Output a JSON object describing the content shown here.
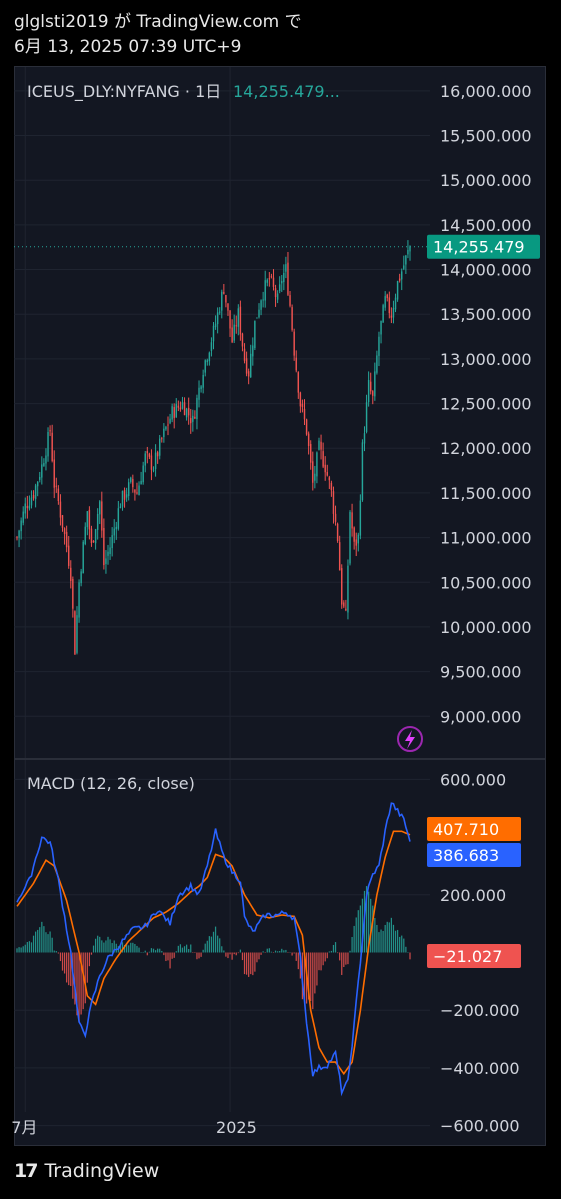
{
  "header": {
    "line1": "glglsti2019 が TradingView.com で",
    "line2": "6月 13, 2025 07:39 UTC+9"
  },
  "legend": {
    "symbol": "ICEUS_DLY:NYFANG · 1日",
    "value": "14,255.479..."
  },
  "macd_legend": "MACD (12, 26, close)",
  "footer": {
    "brand": "TradingView",
    "logo": "17"
  },
  "colors": {
    "up": "#26a69a",
    "down": "#ef5350",
    "macd": "#2962ff",
    "signal": "#ff6d00",
    "hist_up": "#26a69a",
    "hist_down": "#ef5350",
    "bg": "#131722",
    "grid": "#1f2430"
  },
  "chart_data": [
    {
      "type": "candlestick",
      "title": "ICEUS_DLY:NYFANG · 1日",
      "y_ticks": [
        "16,000.000",
        "15,500.000",
        "15,000.000",
        "14,500.000",
        "14,000.000",
        "13,500.000",
        "13,000.000",
        "12,500.000",
        "12,000.000",
        "11,500.000",
        "11,000.000",
        "10,500.000",
        "10,000.000",
        "9,500.000",
        "9,000.000"
      ],
      "ylim": [
        8600,
        16200
      ],
      "x_ticks": [
        "7月",
        "2025"
      ],
      "last_price": 14255.479,
      "last_price_label": "14,255.479",
      "anchors_close": [
        [
          0,
          11000
        ],
        [
          4,
          11350
        ],
        [
          8,
          11500
        ],
        [
          12,
          11800
        ],
        [
          16,
          12200
        ],
        [
          18,
          11600
        ],
        [
          20,
          11400
        ],
        [
          24,
          10900
        ],
        [
          26,
          10600
        ],
        [
          28,
          9750
        ],
        [
          30,
          10500
        ],
        [
          34,
          11300
        ],
        [
          36,
          10900
        ],
        [
          40,
          11400
        ],
        [
          42,
          10700
        ],
        [
          45,
          10900
        ],
        [
          50,
          11400
        ],
        [
          55,
          11600
        ],
        [
          58,
          11500
        ],
        [
          62,
          11900
        ],
        [
          66,
          11800
        ],
        [
          70,
          12100
        ],
        [
          75,
          12400
        ],
        [
          80,
          12500
        ],
        [
          85,
          12300
        ],
        [
          90,
          12900
        ],
        [
          95,
          13300
        ],
        [
          100,
          13800
        ],
        [
          104,
          13200
        ],
        [
          107,
          13500
        ],
        [
          110,
          13000
        ],
        [
          112,
          12850
        ],
        [
          115,
          13400
        ],
        [
          118,
          13700
        ],
        [
          122,
          13900
        ],
        [
          126,
          13650
        ],
        [
          128,
          13900
        ],
        [
          130,
          14000
        ],
        [
          132,
          13600
        ],
        [
          134,
          13100
        ],
        [
          137,
          12500
        ],
        [
          140,
          12200
        ],
        [
          143,
          11600
        ],
        [
          146,
          12000
        ],
        [
          149,
          11800
        ],
        [
          152,
          11500
        ],
        [
          155,
          11000
        ],
        [
          157,
          10300
        ],
        [
          159,
          10100
        ],
        [
          161,
          11300
        ],
        [
          163,
          10900
        ],
        [
          165,
          11000
        ],
        [
          167,
          12000
        ],
        [
          170,
          12700
        ],
        [
          172,
          12550
        ],
        [
          175,
          13250
        ],
        [
          178,
          13650
        ],
        [
          181,
          13500
        ],
        [
          184,
          13850
        ],
        [
          187,
          14050
        ],
        [
          190,
          14256
        ]
      ],
      "n_candles": 191
    },
    {
      "type": "macd",
      "title": "MACD (12, 26, close)",
      "y_ticks": [
        "600.000",
        "200.000",
        "−200.000",
        "−400.000",
        "−600.000"
      ],
      "ylim": [
        -650,
        650
      ],
      "macd_label": "386.683",
      "signal_label": "407.710",
      "hist_label": "−21.027",
      "macd_value": 386.683,
      "signal_value": 407.71,
      "hist_value": -21.027,
      "macd_anchors": [
        [
          0,
          180
        ],
        [
          6,
          250
        ],
        [
          12,
          400
        ],
        [
          16,
          380
        ],
        [
          20,
          250
        ],
        [
          26,
          0
        ],
        [
          30,
          -250
        ],
        [
          33,
          -280
        ],
        [
          36,
          -180
        ],
        [
          40,
          -80
        ],
        [
          44,
          -20
        ],
        [
          50,
          30
        ],
        [
          56,
          80
        ],
        [
          62,
          90
        ],
        [
          68,
          150
        ],
        [
          74,
          100
        ],
        [
          78,
          200
        ],
        [
          84,
          230
        ],
        [
          88,
          200
        ],
        [
          92,
          300
        ],
        [
          96,
          420
        ],
        [
          100,
          330
        ],
        [
          104,
          280
        ],
        [
          108,
          250
        ],
        [
          110,
          120
        ],
        [
          114,
          70
        ],
        [
          120,
          130
        ],
        [
          126,
          130
        ],
        [
          130,
          140
        ],
        [
          134,
          120
        ],
        [
          137,
          -20
        ],
        [
          140,
          -240
        ],
        [
          143,
          -420
        ],
        [
          146,
          -400
        ],
        [
          150,
          -390
        ],
        [
          154,
          -350
        ],
        [
          157,
          -480
        ],
        [
          160,
          -450
        ],
        [
          163,
          -250
        ],
        [
          166,
          -30
        ],
        [
          169,
          200
        ],
        [
          172,
          270
        ],
        [
          175,
          300
        ],
        [
          178,
          420
        ],
        [
          181,
          520
        ],
        [
          184,
          490
        ],
        [
          187,
          460
        ],
        [
          190,
          387
        ]
      ],
      "signal_anchors": [
        [
          0,
          160
        ],
        [
          8,
          240
        ],
        [
          14,
          320
        ],
        [
          18,
          300
        ],
        [
          24,
          180
        ],
        [
          30,
          0
        ],
        [
          34,
          -150
        ],
        [
          38,
          -180
        ],
        [
          42,
          -90
        ],
        [
          48,
          -20
        ],
        [
          54,
          40
        ],
        [
          60,
          80
        ],
        [
          66,
          120
        ],
        [
          72,
          140
        ],
        [
          78,
          170
        ],
        [
          84,
          210
        ],
        [
          88,
          230
        ],
        [
          92,
          260
        ],
        [
          96,
          340
        ],
        [
          100,
          330
        ],
        [
          104,
          300
        ],
        [
          110,
          200
        ],
        [
          116,
          130
        ],
        [
          122,
          120
        ],
        [
          128,
          130
        ],
        [
          134,
          125
        ],
        [
          138,
          60
        ],
        [
          142,
          -200
        ],
        [
          146,
          -330
        ],
        [
          150,
          -380
        ],
        [
          154,
          -380
        ],
        [
          158,
          -420
        ],
        [
          162,
          -380
        ],
        [
          166,
          -200
        ],
        [
          170,
          20
        ],
        [
          174,
          200
        ],
        [
          178,
          330
        ],
        [
          182,
          420
        ],
        [
          186,
          420
        ],
        [
          190,
          408
        ]
      ]
    }
  ]
}
